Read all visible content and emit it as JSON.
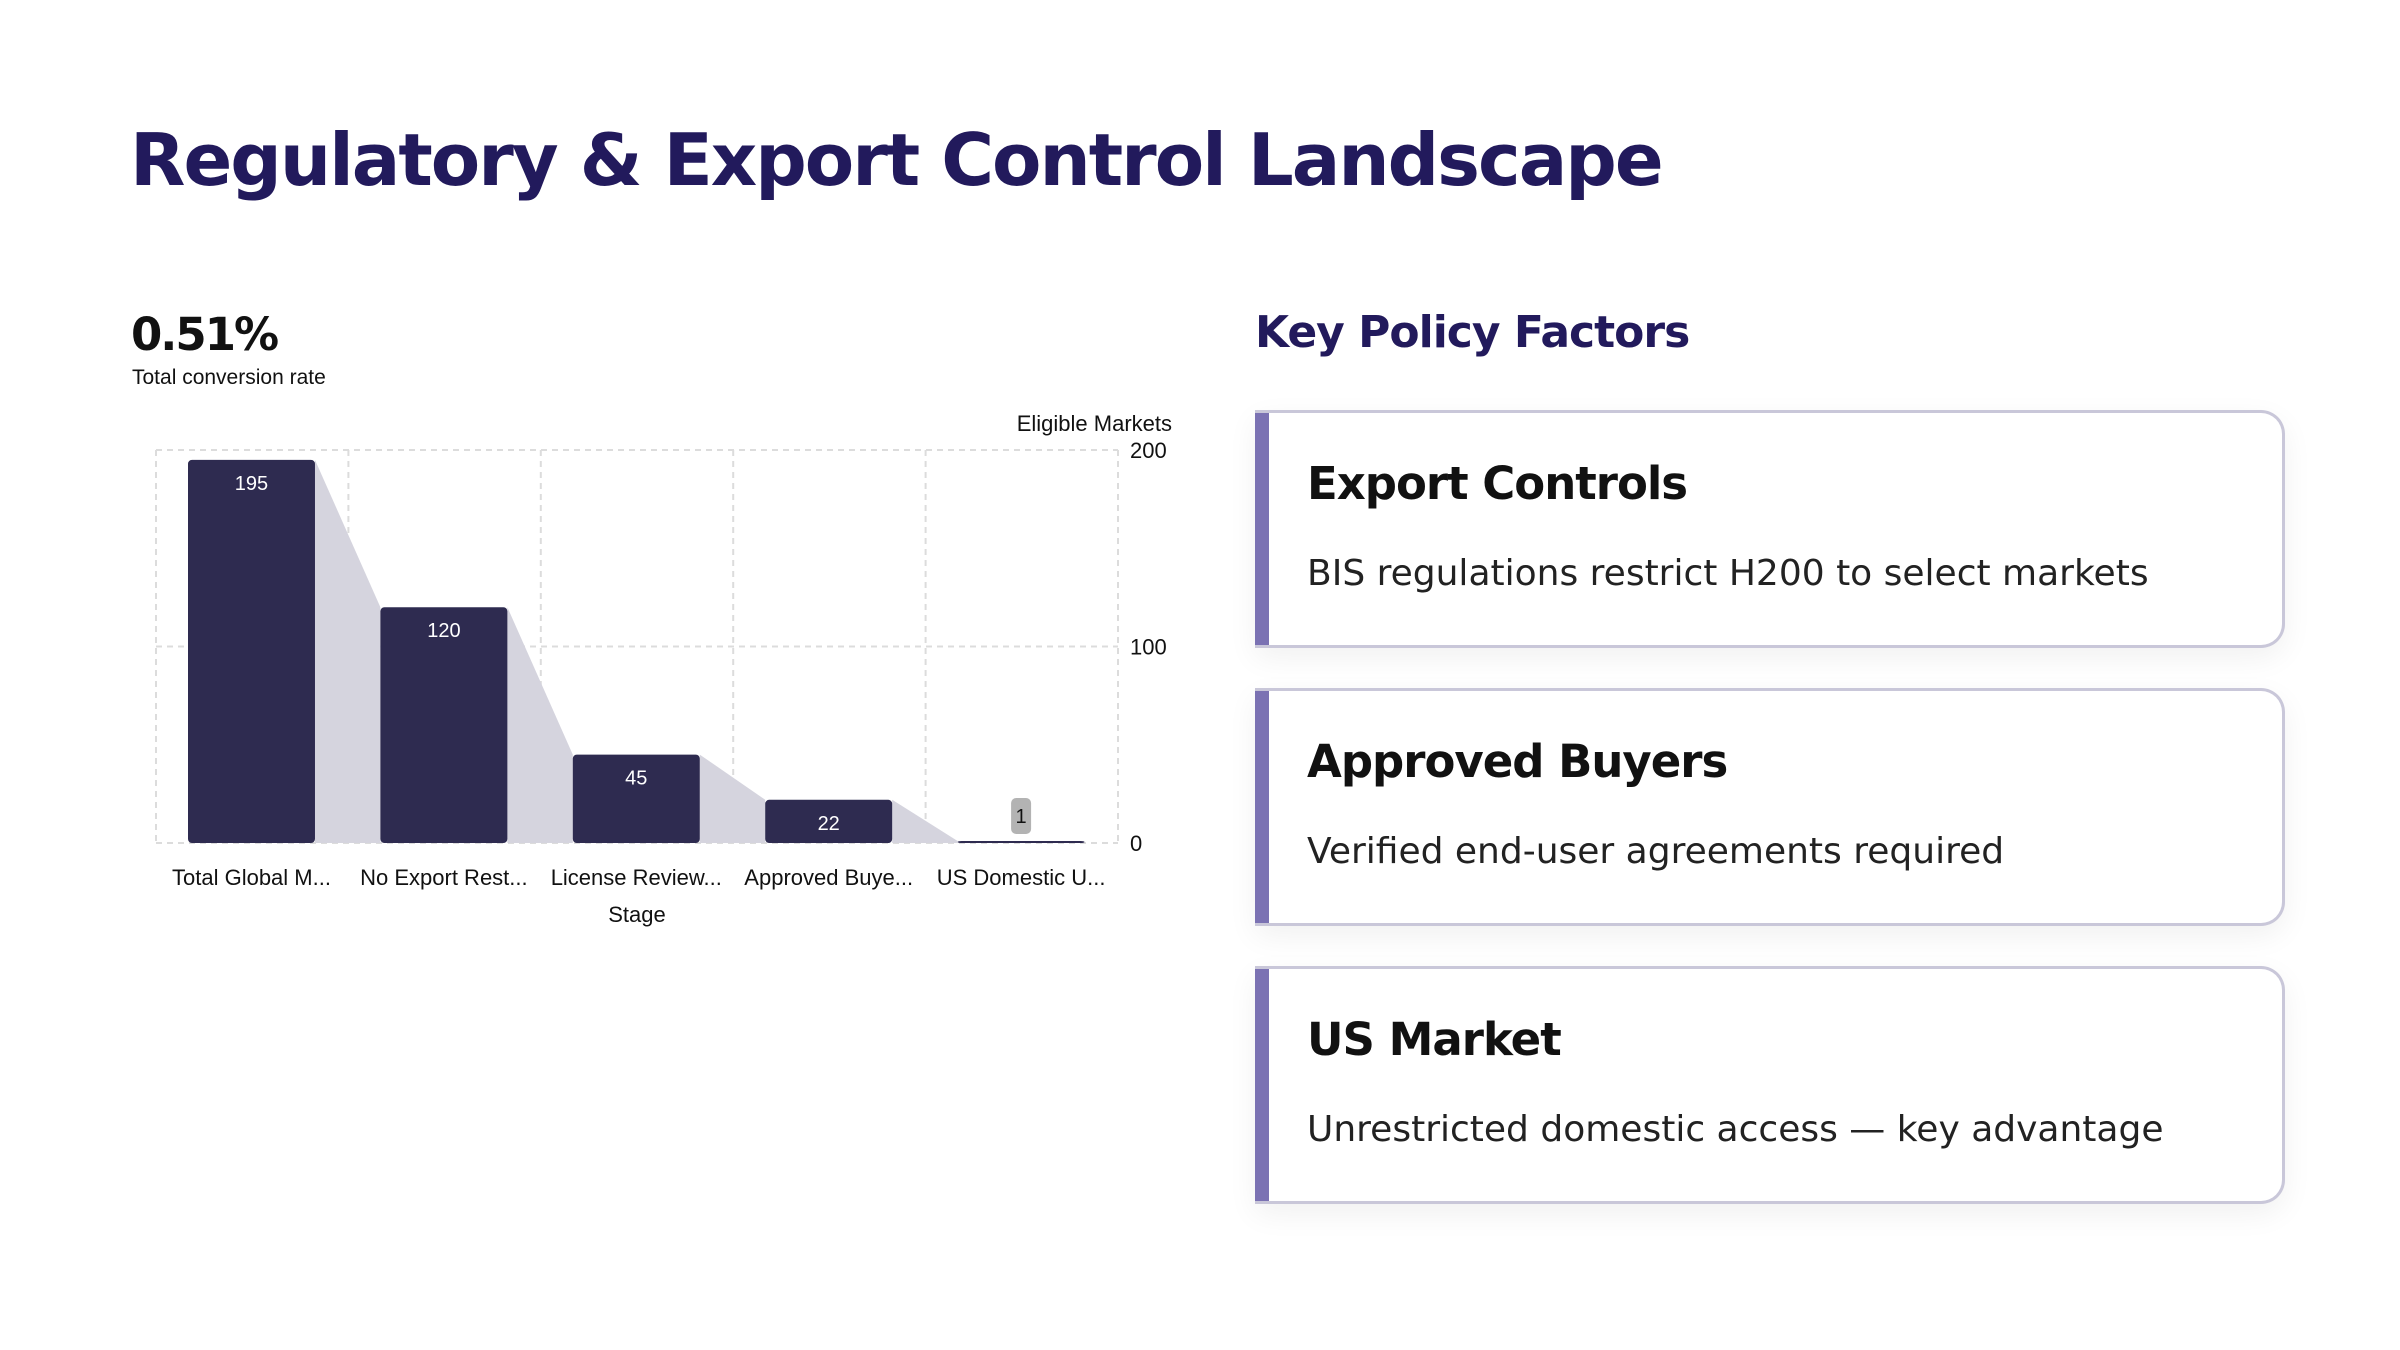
{
  "page": {
    "title": "Regulatory & Export Control Landscape"
  },
  "kpi": {
    "value": "0.51%",
    "label": "Total conversion rate"
  },
  "chart_data": {
    "type": "bar",
    "categories": [
      "Total Global M...",
      "No Export Rest...",
      "License Review...",
      "Approved Buye...",
      "US Domestic U..."
    ],
    "values": [
      195,
      120,
      45,
      22,
      1
    ],
    "xlabel": "Stage",
    "ylabel": "Eligible Markets",
    "ylim": [
      0,
      200
    ],
    "yticks": [
      0,
      100,
      200
    ],
    "grid": true,
    "bar_color": "#2e2b50",
    "funnel_color": "#d5d4de"
  },
  "policy": {
    "heading": "Key Policy Factors",
    "accent_color": "#7b72b3",
    "cards": [
      {
        "title": "Export Controls",
        "description": "BIS regulations restrict H200 to select markets"
      },
      {
        "title": "Approved Buyers",
        "description": "Verified end-user agreements required"
      },
      {
        "title": "US Market",
        "description": "Unrestricted domestic access — key advantage"
      }
    ]
  }
}
